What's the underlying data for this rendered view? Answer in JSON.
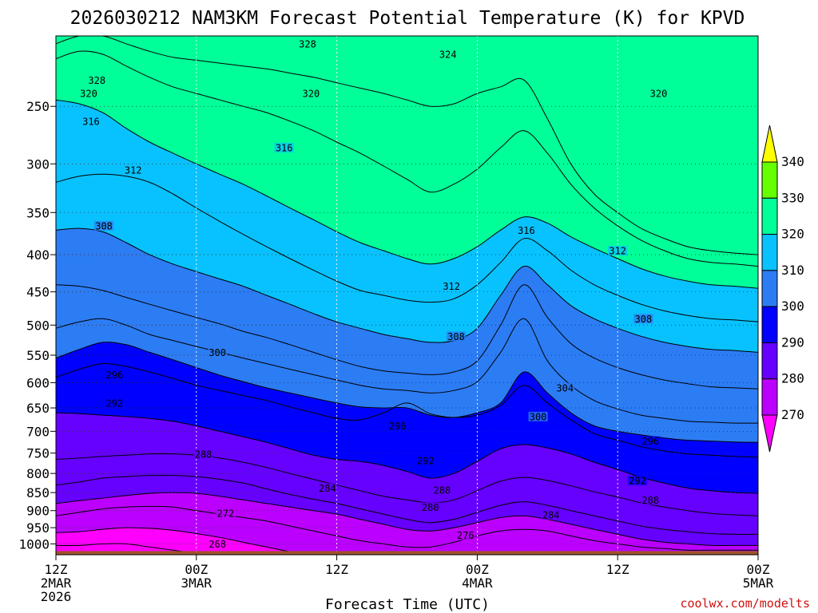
{
  "chart_data": {
    "type": "heatmap",
    "subtype": "time-height filled contour cross-section",
    "title": "2026030212 NAM3KM Forecast Potential Temperature (K) for KPVD",
    "xlabel": "Forecast Time (UTC)",
    "ylabel": "",
    "x_ticks": [
      {
        "hour": 0,
        "lines": [
          "12Z",
          "2MAR",
          "2026"
        ]
      },
      {
        "hour": 12,
        "lines": [
          "00Z",
          "3MAR"
        ]
      },
      {
        "hour": 24,
        "lines": [
          "12Z"
        ]
      },
      {
        "hour": 36,
        "lines": [
          "00Z",
          "4MAR"
        ]
      },
      {
        "hour": 48,
        "lines": [
          "12Z"
        ]
      },
      {
        "hour": 60,
        "lines": [
          "00Z",
          "5MAR"
        ]
      }
    ],
    "xlim": [
      0,
      60
    ],
    "y_unit": "hPa",
    "ylim": [
      1035,
      200
    ],
    "y_ticks": [
      250,
      300,
      350,
      400,
      450,
      500,
      550,
      600,
      650,
      700,
      750,
      800,
      850,
      900,
      950,
      1000
    ],
    "colorbar": {
      "levels": [
        270,
        280,
        290,
        300,
        310,
        320,
        330,
        340
      ],
      "colors": [
        "#ff00ff",
        "#bb00ff",
        "#6600ff",
        "#0000ff",
        "#2c7cf4",
        "#08c2ff",
        "#00ff99",
        "#66ff00",
        "#ffff00"
      ],
      "extend": "both"
    },
    "isentropes": [
      {
        "value": 268,
        "p": [
          1005,
          1005,
          1000,
          1000,
          1010,
          1020,
          1030,
          1035,
          1035,
          1035,
          1035,
          1035,
          1035,
          1035,
          1035,
          1035,
          1035,
          1035,
          1035,
          1035,
          1035,
          1035,
          1035,
          1035,
          1035,
          1035,
          1035,
          1035,
          1035,
          1035,
          1035
        ]
      },
      {
        "value": 272,
        "p": [
          965,
          962,
          955,
          950,
          952,
          958,
          968,
          980,
          995,
          1010,
          1025,
          1035,
          1035,
          1035,
          1035,
          1035,
          1035,
          1035,
          1035,
          1035,
          1035,
          1035,
          1035,
          1035,
          1035,
          1035,
          1035,
          1035,
          1035,
          1035,
          1035
        ]
      },
      {
        "value": 276,
        "p": [
          915,
          905,
          895,
          890,
          888,
          890,
          900,
          910,
          920,
          930,
          945,
          960,
          975,
          990,
          1000,
          1010,
          1010,
          995,
          975,
          960,
          955,
          960,
          975,
          990,
          1000,
          1010,
          1015,
          1020,
          1020,
          1020,
          1020
        ]
      },
      {
        "value": 280,
        "p": [
          880,
          872,
          865,
          858,
          852,
          850,
          852,
          860,
          870,
          880,
          890,
          900,
          910,
          925,
          940,
          955,
          960,
          950,
          935,
          920,
          915,
          925,
          940,
          955,
          970,
          985,
          995,
          1000,
          1005,
          1005,
          1005
        ]
      },
      {
        "value": 284,
        "p": [
          830,
          822,
          812,
          808,
          805,
          805,
          808,
          815,
          825,
          840,
          855,
          868,
          880,
          895,
          910,
          925,
          935,
          925,
          905,
          885,
          875,
          885,
          900,
          915,
          930,
          945,
          955,
          962,
          968,
          970,
          970
        ]
      },
      {
        "value": 288,
        "p": [
          765,
          762,
          758,
          755,
          752,
          752,
          755,
          762,
          772,
          785,
          800,
          815,
          830,
          845,
          860,
          870,
          878,
          870,
          845,
          820,
          810,
          818,
          832,
          848,
          862,
          878,
          890,
          900,
          908,
          912,
          915
        ]
      },
      {
        "value": 292,
        "p": [
          660,
          662,
          665,
          668,
          672,
          678,
          688,
          700,
          712,
          725,
          740,
          755,
          765,
          770,
          780,
          795,
          812,
          800,
          770,
          740,
          730,
          738,
          752,
          772,
          790,
          810,
          825,
          838,
          845,
          850,
          852
        ]
      },
      {
        "value": 296,
        "p": [
          590,
          575,
          565,
          570,
          580,
          592,
          605,
          615,
          625,
          635,
          648,
          660,
          672,
          675,
          660,
          640,
          662,
          670,
          665,
          645,
          605,
          640,
          675,
          705,
          720,
          735,
          745,
          752,
          755,
          758,
          760
        ]
      },
      {
        "value": 300,
        "p": [
          555,
          540,
          528,
          532,
          545,
          558,
          572,
          586,
          598,
          610,
          620,
          630,
          640,
          648,
          650,
          650,
          665,
          670,
          660,
          640,
          580,
          620,
          660,
          688,
          700,
          708,
          715,
          720,
          722,
          724,
          725
        ]
      },
      {
        "value": 304,
        "p": [
          505,
          495,
          490,
          500,
          515,
          525,
          535,
          545,
          555,
          565,
          575,
          585,
          595,
          605,
          612,
          615,
          620,
          615,
          598,
          545,
          490,
          560,
          605,
          635,
          652,
          665,
          672,
          678,
          680,
          682,
          682
        ]
      },
      {
        "value": 308,
        "p": [
          440,
          442,
          448,
          458,
          468,
          478,
          488,
          498,
          510,
          520,
          532,
          545,
          558,
          570,
          578,
          582,
          585,
          580,
          560,
          500,
          440,
          488,
          530,
          555,
          572,
          585,
          595,
          602,
          608,
          610,
          612
        ]
      },
      {
        "value": 312,
        "p": [
          370,
          368,
          372,
          385,
          400,
          412,
          422,
          432,
          442,
          455,
          468,
          482,
          495,
          505,
          515,
          522,
          528,
          525,
          505,
          455,
          415,
          440,
          470,
          490,
          505,
          518,
          528,
          535,
          540,
          542,
          545
        ]
      },
      {
        "value": 316,
        "p": [
          318,
          312,
          310,
          312,
          318,
          330,
          345,
          360,
          375,
          390,
          405,
          420,
          435,
          448,
          455,
          462,
          465,
          460,
          440,
          410,
          380,
          395,
          420,
          440,
          455,
          468,
          478,
          485,
          490,
          492,
          495
        ]
      },
      {
        "value": 320,
        "p": [
          245,
          248,
          255,
          268,
          280,
          290,
          300,
          310,
          320,
          332,
          345,
          358,
          372,
          385,
          395,
          405,
          412,
          405,
          390,
          370,
          355,
          362,
          378,
          392,
          405,
          418,
          428,
          435,
          440,
          442,
          445
        ]
      },
      {
        "value": 324,
        "p": [
          215,
          210,
          212,
          220,
          228,
          235,
          240,
          245,
          250,
          255,
          262,
          270,
          280,
          290,
          302,
          315,
          328,
          320,
          305,
          285,
          270,
          290,
          320,
          345,
          365,
          382,
          395,
          405,
          410,
          412,
          415
        ]
      },
      {
        "value": 328,
        "p": [
          205,
          200,
          200,
          205,
          210,
          214,
          216,
          218,
          220,
          222,
          225,
          228,
          232,
          236,
          240,
          245,
          250,
          248,
          240,
          235,
          230,
          260,
          300,
          330,
          350,
          368,
          380,
          390,
          395,
          398,
          400
        ]
      }
    ],
    "contour_labels": [
      {
        "text": "328",
        "hour": 21.5,
        "p": 205
      },
      {
        "text": "324",
        "hour": 33.5,
        "p": 212
      },
      {
        "text": "328",
        "hour": 3.5,
        "p": 230
      },
      {
        "text": "320",
        "hour": 2.8,
        "p": 240
      },
      {
        "text": "320",
        "hour": 21.8,
        "p": 240
      },
      {
        "text": "320",
        "hour": 51.5,
        "p": 240
      },
      {
        "text": "316",
        "hour": 3,
        "p": 262
      },
      {
        "text": "316",
        "hour": 19.5,
        "p": 285
      },
      {
        "text": "312",
        "hour": 6.6,
        "p": 306
      },
      {
        "text": "316",
        "hour": 40.2,
        "p": 370
      },
      {
        "text": "308",
        "hour": 4.1,
        "p": 365
      },
      {
        "text": "312",
        "hour": 48,
        "p": 395
      },
      {
        "text": "312",
        "hour": 33.8,
        "p": 442
      },
      {
        "text": "308",
        "hour": 50.2,
        "p": 490
      },
      {
        "text": "308",
        "hour": 34.2,
        "p": 518
      },
      {
        "text": "300",
        "hour": 13.8,
        "p": 545
      },
      {
        "text": "296",
        "hour": 5,
        "p": 585
      },
      {
        "text": "304",
        "hour": 43.5,
        "p": 610
      },
      {
        "text": "292",
        "hour": 5,
        "p": 640
      },
      {
        "text": "300",
        "hour": 41.2,
        "p": 668
      },
      {
        "text": "296",
        "hour": 29.2,
        "p": 688
      },
      {
        "text": "296",
        "hour": 50.8,
        "p": 722
      },
      {
        "text": "288",
        "hour": 12.6,
        "p": 753
      },
      {
        "text": "292",
        "hour": 31.6,
        "p": 768
      },
      {
        "text": "292",
        "hour": 49.7,
        "p": 818
      },
      {
        "text": "284",
        "hour": 23.2,
        "p": 838
      },
      {
        "text": "288",
        "hour": 33,
        "p": 843
      },
      {
        "text": "288",
        "hour": 50.8,
        "p": 870
      },
      {
        "text": "280",
        "hour": 32,
        "p": 890
      },
      {
        "text": "272",
        "hour": 14.5,
        "p": 907
      },
      {
        "text": "284",
        "hour": 42.3,
        "p": 912
      },
      {
        "text": "276",
        "hour": 35,
        "p": 973
      },
      {
        "text": "268",
        "hour": 13.8,
        "p": 1000
      }
    ],
    "terrain_top_p": 1023
  },
  "credit": "coolwx.com/modelts"
}
